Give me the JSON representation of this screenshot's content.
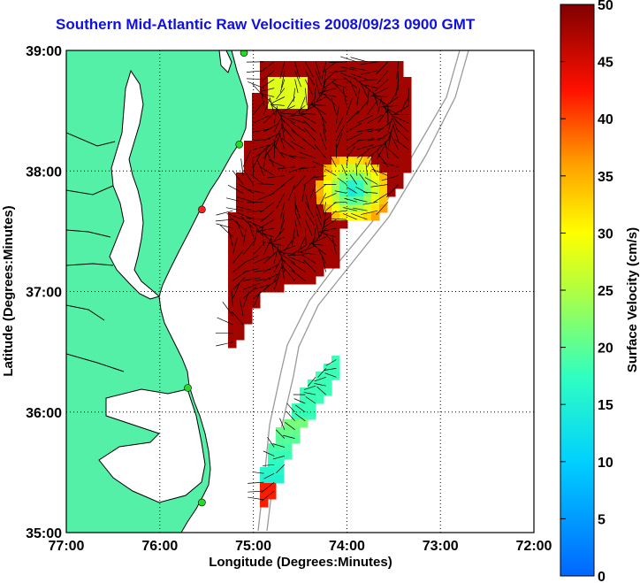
{
  "title": "Southern Mid-Atlantic Raw Velocities 2008/09/23 0900 GMT",
  "colors": {
    "land": "#55f0a8",
    "coast": "#000000",
    "bathy": "#9a9a9a",
    "title": "#1010e0"
  },
  "map": {
    "xlabel": "Longitude (Degrees:Minutes)",
    "ylabel": "Latitude (Degrees:Minutes)",
    "xlim": [
      -77,
      -72
    ],
    "ylim": [
      35,
      39
    ],
    "x_ticks": [
      {
        "value": -77,
        "label": "77:00"
      },
      {
        "value": -76,
        "label": "76:00"
      },
      {
        "value": -75,
        "label": "75:00"
      },
      {
        "value": -74,
        "label": "74:00"
      },
      {
        "value": -73,
        "label": "73:00"
      },
      {
        "value": -72,
        "label": "72:00"
      }
    ],
    "y_ticks": [
      {
        "value": 35,
        "label": "35:00"
      },
      {
        "value": 36,
        "label": "36:00"
      },
      {
        "value": 37,
        "label": "37:00"
      },
      {
        "value": 38,
        "label": "38:00"
      },
      {
        "value": 39,
        "label": "39:00"
      }
    ],
    "stations": [
      {
        "lon": -75.1,
        "lat": 38.98,
        "color": "#22dd22"
      },
      {
        "lon": -75.15,
        "lat": 38.22,
        "color": "#22dd22"
      },
      {
        "lon": -75.55,
        "lat": 37.68,
        "color": "#ff2020"
      },
      {
        "lon": -75.7,
        "lat": 36.2,
        "color": "#22dd22"
      },
      {
        "lon": -75.55,
        "lat": 35.25,
        "color": "#22dd22"
      }
    ]
  },
  "colorbar": {
    "label": "Surface Velocity (cm/s)",
    "min": 0,
    "max": 50,
    "ticks": [
      0,
      5,
      10,
      15,
      20,
      25,
      30,
      35,
      40,
      45,
      50
    ]
  }
}
